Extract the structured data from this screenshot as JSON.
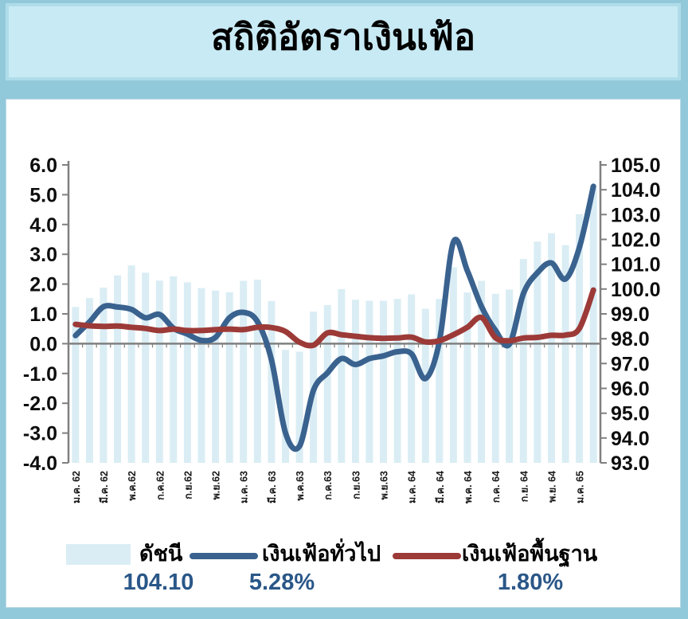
{
  "title": "สถิติอัตราเงินเฟ้อ",
  "legend": {
    "items": [
      {
        "label": "ดัชนี",
        "value": "104.10",
        "swatch": "bar"
      },
      {
        "label": "เงินเฟ้อทั่วไป",
        "value": "5.28%",
        "swatch": "line"
      },
      {
        "label": "เงินเฟ้อพื้นฐาน",
        "value": "1.80%",
        "swatch": "line"
      }
    ]
  },
  "colors": {
    "page_bg": "#92C9DA",
    "title_bg": "#C8EAF4",
    "title_border": "#AFDCEA",
    "panel_bg": "#FFFFFF",
    "bar_fill": "#DAEDF4",
    "headline_line": "#3A628F",
    "core_line": "#9C3A38",
    "axis_gray": "#808080",
    "value_text": "#2A5788",
    "label_text": "#000000"
  },
  "chart_data": {
    "type": "bar",
    "subtype": "combo: index bars (right axis) + two smoothed YoY lines (left axis)",
    "n_points": 38,
    "x_label_every": 2,
    "x_labels": [
      "ม.ค. 62",
      "มี.ค. 62",
      "พ.ค.62",
      "ก.ค.62",
      "ก.ย.62",
      "พ.ย.62",
      "ม.ค. 63",
      "มี.ค. 63",
      "พ.ค.63",
      "ก.ค.63",
      "ก.ย.63",
      "พ.ย.63",
      "ม.ค. 64",
      "มี.ค. 64",
      "พ.ค. 64",
      "ก.ค. 64",
      "ก.ย. 64",
      "พ.ย. 64",
      "ม.ค. 65"
    ],
    "left_axis": {
      "min": -4.0,
      "max": 6.0,
      "step": 1.0
    },
    "right_axis": {
      "min": 93.0,
      "max": 105.0,
      "step": 1.0
    },
    "gridlines": false,
    "legend_position": "bottom",
    "series": [
      {
        "name": "ดัชนี",
        "type": "bar",
        "axis": "right",
        "values": [
          99.28,
          99.64,
          100.06,
          100.55,
          100.95,
          100.66,
          100.34,
          100.51,
          100.27,
          100.04,
          99.94,
          99.87,
          100.33,
          100.38,
          99.52,
          97.55,
          97.48,
          99.09,
          99.36,
          100.0,
          99.57,
          99.53,
          99.53,
          99.6,
          99.79,
          99.21,
          99.6,
          100.88,
          99.87,
          100.33,
          99.81,
          99.98,
          101.21,
          101.91,
          102.25,
          101.77,
          103.01,
          104.1
        ]
      },
      {
        "name": "เงินเฟ้อทั่วไป",
        "type": "smooth-line",
        "axis": "left",
        "values": [
          0.27,
          0.73,
          1.24,
          1.23,
          1.15,
          0.87,
          0.98,
          0.52,
          0.32,
          0.11,
          0.21,
          0.87,
          1.05,
          0.74,
          -0.54,
          -2.99,
          -3.44,
          -1.57,
          -0.98,
          -0.5,
          -0.7,
          -0.5,
          -0.41,
          -0.27,
          -0.34,
          -1.17,
          0.08,
          3.41,
          2.44,
          1.25,
          0.45,
          -0.02,
          1.68,
          2.38,
          2.71,
          2.17,
          3.23,
          5.28
        ]
      },
      {
        "name": "เงินเฟ้อพื้นฐาน",
        "type": "smooth-line",
        "axis": "left",
        "values": [
          0.65,
          0.6,
          0.58,
          0.59,
          0.55,
          0.51,
          0.44,
          0.49,
          0.44,
          0.44,
          0.47,
          0.49,
          0.47,
          0.55,
          0.54,
          0.41,
          0.05,
          -0.05,
          0.36,
          0.3,
          0.25,
          0.2,
          0.18,
          0.19,
          0.22,
          0.06,
          0.1,
          0.3,
          0.55,
          0.88,
          0.2,
          0.1,
          0.19,
          0.21,
          0.28,
          0.29,
          0.51,
          1.8
        ]
      }
    ]
  }
}
